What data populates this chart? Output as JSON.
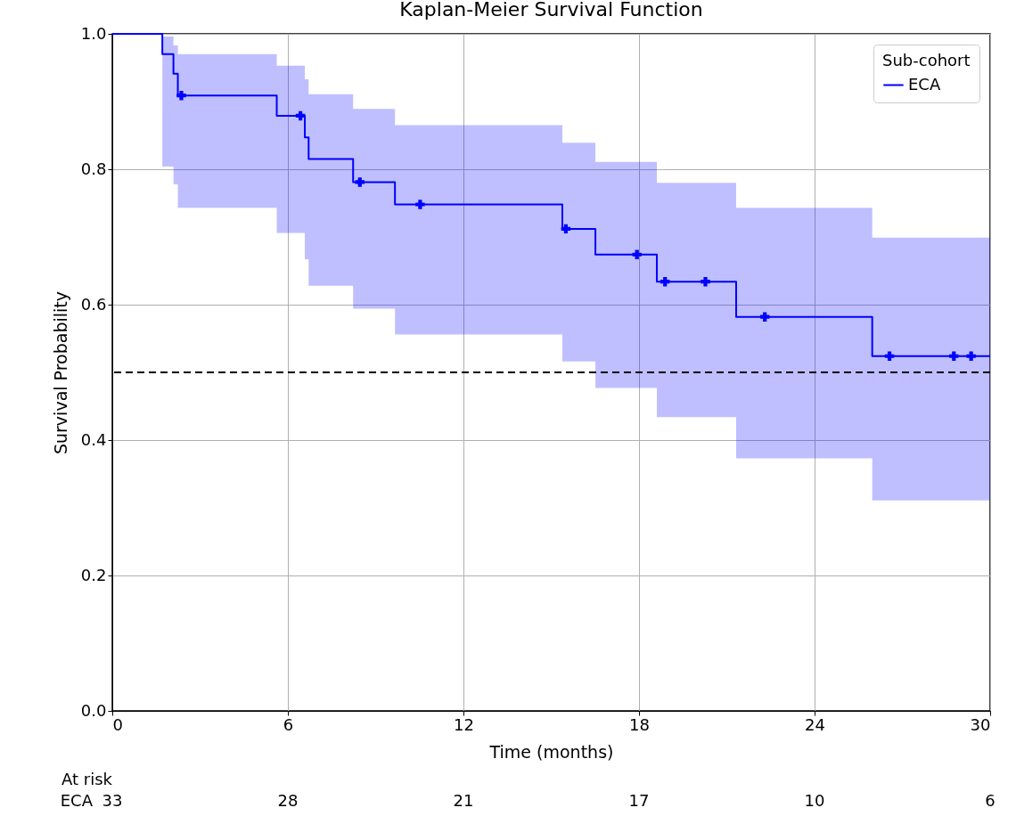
{
  "chart_data": {
    "type": "step",
    "title": "Kaplan-Meier Survival Function",
    "xlabel": "Time (months)",
    "ylabel": "Survival Probability",
    "legend_title": "Sub-cohort",
    "legend": "top right",
    "grid": true,
    "xlim": [
      0,
      30
    ],
    "xticks": [
      0,
      6,
      12,
      18,
      24,
      30
    ],
    "ylim": [
      0,
      1
    ],
    "yticks": [
      {
        "value": 0,
        "label": "0.0"
      },
      0.2,
      0.4,
      0.6,
      0.8,
      {
        "value": 1,
        "label": "1.0"
      }
    ],
    "series": [
      {
        "name": "ECA",
        "color": "#0000ff",
        "x": [
          0,
          1.71,
          2.09,
          2.24,
          5.62,
          6.58,
          6.71,
          8.23,
          9.66,
          15.38,
          16.51,
          18.61,
          21.32,
          25.97,
          30
        ],
        "values": [
          1,
          0.97,
          0.941,
          0.909,
          0.879,
          0.847,
          0.815,
          0.781,
          0.748,
          0.712,
          0.674,
          0.634,
          0.582,
          0.524,
          0.524
        ],
        "lower": [
          1,
          0.804,
          0.778,
          0.743,
          0.706,
          0.667,
          0.628,
          0.594,
          0.556,
          0.516,
          0.477,
          0.434,
          0.373,
          0.311,
          0.311
        ],
        "upper": [
          1,
          0.996,
          0.983,
          0.97,
          0.953,
          0.933,
          0.911,
          0.889,
          0.865,
          0.839,
          0.811,
          0.78,
          0.743,
          0.699,
          0.699
        ]
      },
      {
        "type": "scatter",
        "color": "#0000ff",
        "marker": "cross",
        "x": [
          2.36,
          6.43,
          8.46,
          10.52,
          15.5,
          17.93,
          18.89,
          20.27,
          22.3,
          26.56,
          28.76,
          29.35
        ],
        "values": [
          0.909,
          0.879,
          0.781,
          0.748,
          0.712,
          0.674,
          0.634,
          0.634,
          0.582,
          0.524,
          0.524,
          0.524
        ]
      }
    ],
    "ref_lines": [
      {
        "axis": "y",
        "value": 0.5,
        "color": "#000000",
        "line_style": "dashed"
      }
    ],
    "annotations": [
      "At risk",
      "ECA",
      "33",
      "28",
      "21",
      "17",
      "10",
      "6"
    ]
  }
}
